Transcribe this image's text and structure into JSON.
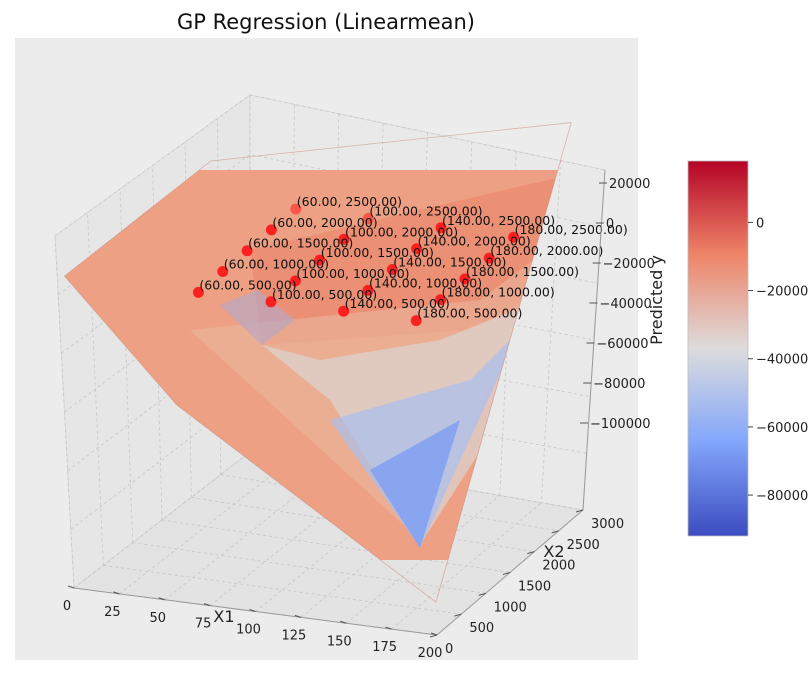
{
  "chart_data": {
    "type": "surface",
    "title": "GP Regression (Linearmean)",
    "xlabel": "X1",
    "ylabel": "X2",
    "zlabel": "Predicted y",
    "xlim": [
      0,
      200
    ],
    "ylim": [
      0,
      3000
    ],
    "zlim": [
      -100000,
      20000
    ],
    "x_ticks": [
      "0",
      "25",
      "50",
      "75",
      "100",
      "125",
      "150",
      "175",
      "200"
    ],
    "y_ticks": [
      "0",
      "500",
      "1000",
      "1500",
      "2000",
      "2500",
      "3000"
    ],
    "z_ticks": [
      "20000",
      "0",
      "−20000",
      "−40000",
      "−60000",
      "−80000",
      "−100000"
    ],
    "surface_corners": [
      {
        "x1": 0,
        "x2": 0,
        "y": -5000
      },
      {
        "x1": 200,
        "x2": 0,
        "y": -90000
      },
      {
        "x1": 200,
        "x2": 3000,
        "y": 18000
      },
      {
        "x1": 0,
        "x2": 3000,
        "y": -8000
      }
    ],
    "surface_trough": {
      "x1": 60,
      "x2": 0,
      "y": -40000
    },
    "points": [
      {
        "label": "(60.00, 500.00)",
        "x1": 60,
        "x2": 500,
        "y": -12000
      },
      {
        "label": "(60.00, 1000.00)",
        "x1": 60,
        "x2": 1000,
        "y": -12000
      },
      {
        "label": "(60.00, 1500.00)",
        "x1": 60,
        "x2": 1500,
        "y": -12000
      },
      {
        "label": "(60.00, 2000.00)",
        "x1": 60,
        "x2": 2000,
        "y": -12000
      },
      {
        "label": "(60.00, 2500.00)",
        "x1": 60,
        "x2": 2500,
        "y": -12000
      },
      {
        "label": "(100.00, 500.00)",
        "x1": 100,
        "x2": 500,
        "y": -12000
      },
      {
        "label": "(100.00, 1000.00)",
        "x1": 100,
        "x2": 1000,
        "y": -12000
      },
      {
        "label": "(100.00, 1500.00)",
        "x1": 100,
        "x2": 1500,
        "y": -12000
      },
      {
        "label": "(100.00, 2000.00)",
        "x1": 100,
        "x2": 2000,
        "y": -12000
      },
      {
        "label": "(100.00, 2500.00)",
        "x1": 100,
        "x2": 2500,
        "y": -12000
      },
      {
        "label": "(140.00, 500.00)",
        "x1": 140,
        "x2": 500,
        "y": -12000
      },
      {
        "label": "(140.00, 1000.00)",
        "x1": 140,
        "x2": 1000,
        "y": -12000
      },
      {
        "label": "(140.00, 1500.00)",
        "x1": 140,
        "x2": 1500,
        "y": -12000
      },
      {
        "label": "(140.00, 2000.00)",
        "x1": 140,
        "x2": 2000,
        "y": -12000
      },
      {
        "label": "(140.00, 2500.00)",
        "x1": 140,
        "x2": 2500,
        "y": -12000
      },
      {
        "label": "(180.00, 500.00)",
        "x1": 180,
        "x2": 500,
        "y": -12000
      },
      {
        "label": "(180.00, 1000.00)",
        "x1": 180,
        "x2": 1000,
        "y": -12000
      },
      {
        "label": "(180.00, 1500.00)",
        "x1": 180,
        "x2": 1500,
        "y": -12000
      },
      {
        "label": "(180.00, 2000.00)",
        "x1": 180,
        "x2": 2000,
        "y": -12000
      },
      {
        "label": "(180.00, 2500.00)",
        "x1": 180,
        "x2": 2500,
        "y": -12000
      }
    ],
    "point_color": "#ff1a1a",
    "colormap": "coolwarm",
    "colorbar": {
      "range": [
        -92000,
        18000
      ],
      "ticks": [
        "0",
        "−20000",
        "−40000",
        "−60000",
        "−80000"
      ],
      "colors": [
        "#b40426",
        "#ee8468",
        "#dddcdc",
        "#82a6fb",
        "#3b4cc0"
      ]
    }
  }
}
